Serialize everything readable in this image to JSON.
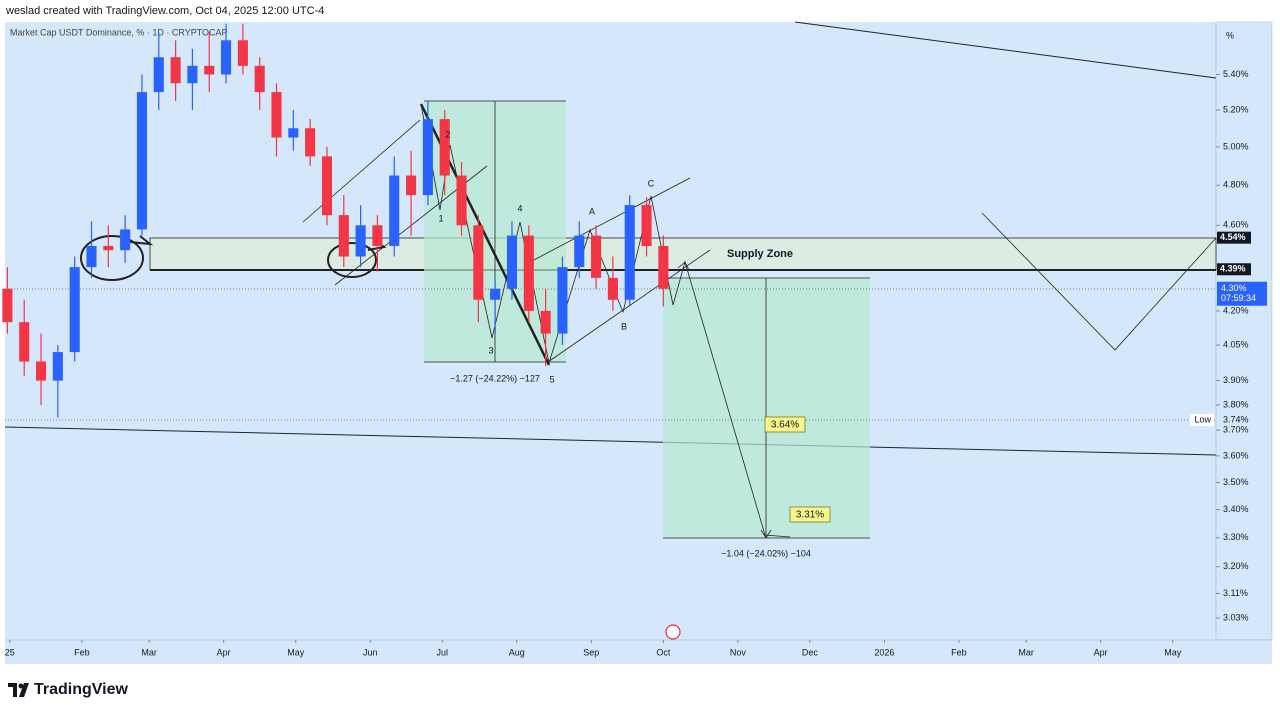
{
  "header": {
    "credit": "weslad created with TradingView.com, Oct 04, 2025 12:00 UTC-4",
    "symbol": "Market Cap USDT Dominance, % · 1D · CRYPTOCAP",
    "unit": "%",
    "brand": "TradingView"
  },
  "chart_data": {
    "type": "candlestick",
    "log_scale": true,
    "up_color": "#2962ff",
    "down_color": "#f23645",
    "x": [
      0,
      7,
      14,
      21,
      28,
      35,
      42,
      49,
      56,
      63,
      70,
      77,
      84,
      91,
      98,
      105,
      112,
      119,
      126,
      133,
      140,
      147,
      154,
      161,
      168,
      175,
      182,
      189,
      196,
      203,
      210,
      217,
      224,
      231,
      238,
      245,
      252,
      259,
      266,
      273
    ],
    "open": [
      4.3,
      4.15,
      3.98,
      3.9,
      4.02,
      4.4,
      4.5,
      4.48,
      4.58,
      5.3,
      5.5,
      5.35,
      5.45,
      5.4,
      5.6,
      5.45,
      5.3,
      5.05,
      5.1,
      4.95,
      4.65,
      4.45,
      4.6,
      4.5,
      4.85,
      4.75,
      5.15,
      4.85,
      4.6,
      4.25,
      4.3,
      4.55,
      4.2,
      4.1,
      4.4,
      4.55,
      4.35,
      4.25,
      4.7,
      4.5
    ],
    "high": [
      4.4,
      4.25,
      4.1,
      4.05,
      4.45,
      4.62,
      4.6,
      4.65,
      5.4,
      5.65,
      5.6,
      5.55,
      5.65,
      5.7,
      5.7,
      5.5,
      5.35,
      5.2,
      5.15,
      5.0,
      4.75,
      4.7,
      4.65,
      4.95,
      4.98,
      5.25,
      5.2,
      4.92,
      4.65,
      4.35,
      4.62,
      4.6,
      4.3,
      4.45,
      4.62,
      4.6,
      4.45,
      4.75,
      4.74,
      4.55
    ],
    "low": [
      4.1,
      3.92,
      3.8,
      3.75,
      3.98,
      4.35,
      4.4,
      4.42,
      4.55,
      5.2,
      5.25,
      5.2,
      5.3,
      5.35,
      5.4,
      5.2,
      4.95,
      4.98,
      4.9,
      4.6,
      4.4,
      4.4,
      4.38,
      4.45,
      4.55,
      4.7,
      4.75,
      4.55,
      4.15,
      4.1,
      4.25,
      4.15,
      3.96,
      4.05,
      4.35,
      4.3,
      4.2,
      4.22,
      4.45,
      4.22
    ],
    "close": [
      4.15,
      3.98,
      3.9,
      4.02,
      4.4,
      4.5,
      4.48,
      4.58,
      5.3,
      5.5,
      5.35,
      5.45,
      5.4,
      5.6,
      5.45,
      5.3,
      5.05,
      5.1,
      4.95,
      4.65,
      4.45,
      4.6,
      4.5,
      4.85,
      4.75,
      5.15,
      4.85,
      4.6,
      4.25,
      4.3,
      4.55,
      4.2,
      4.1,
      4.4,
      4.55,
      4.35,
      4.25,
      4.7,
      4.5,
      4.3
    ],
    "xlim": [
      -1,
      503
    ],
    "ylim": [
      2.96,
      5.71
    ],
    "xticks": [
      {
        "value": 1,
        "label": "25"
      },
      {
        "value": 31,
        "label": "Feb"
      },
      {
        "value": 59,
        "label": "Mar"
      },
      {
        "value": 90,
        "label": "Apr"
      },
      {
        "value": 120,
        "label": "May"
      },
      {
        "value": 151,
        "label": "Jun"
      },
      {
        "value": 181,
        "label": "Jul"
      },
      {
        "value": 212,
        "label": "Aug"
      },
      {
        "value": 243,
        "label": "Sep"
      },
      {
        "value": 273,
        "label": "Oct"
      },
      {
        "value": 304,
        "label": "Nov"
      },
      {
        "value": 334,
        "label": "Dec"
      },
      {
        "value": 365,
        "label": "2026"
      },
      {
        "value": 396,
        "label": "Feb"
      },
      {
        "value": 424,
        "label": "Mar"
      },
      {
        "value": 455,
        "label": "Apr"
      },
      {
        "value": 485,
        "label": "May"
      }
    ],
    "yticks": [
      {
        "value": 5.4,
        "label": "5.40%"
      },
      {
        "value": 5.2,
        "label": "5.20%"
      },
      {
        "value": 5.0,
        "label": "5.00%"
      },
      {
        "value": 4.8,
        "label": "4.80%"
      },
      {
        "value": 4.6,
        "label": "4.60%"
      },
      {
        "value": 4.2,
        "label": "4.20%"
      },
      {
        "value": 4.05,
        "label": "4.05%"
      },
      {
        "value": 3.9,
        "label": "3.90%"
      },
      {
        "value": 3.8,
        "label": "3.80%"
      },
      {
        "value": 3.7,
        "label": "3.70%"
      },
      {
        "value": 3.6,
        "label": "3.60%"
      },
      {
        "value": 3.5,
        "label": "3.50%"
      },
      {
        "value": 3.4,
        "label": "3.40%"
      },
      {
        "value": 3.3,
        "label": "3.30%"
      },
      {
        "value": 3.2,
        "label": "3.20%"
      },
      {
        "value": 3.11,
        "label": "3.11%"
      },
      {
        "value": 3.03,
        "label": "3.03%"
      }
    ],
    "price_labels": [
      {
        "value": 4.54,
        "label": "4.54%"
      },
      {
        "value": 4.39,
        "label": "4.39%"
      }
    ],
    "low_marker": {
      "name": "Low",
      "value": 3.74,
      "label": "3.74%"
    },
    "current_price": {
      "value": 4.3,
      "label": "4.30%",
      "countdown": "07:59:34"
    },
    "annotations": [
      "Supply Zone",
      "1",
      "2",
      "3",
      "4",
      "5",
      "A",
      "B",
      "C",
      "−1.27 (−24.22%) −127",
      "−1.04 (−24.02%) −104",
      "3.64%",
      "3.31%"
    ]
  }
}
